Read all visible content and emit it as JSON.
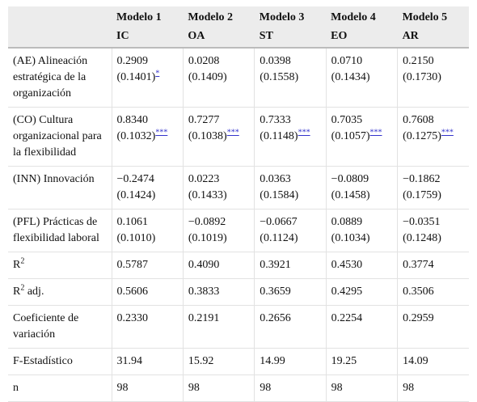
{
  "header": {
    "columns": [
      {
        "model": "Modelo 1",
        "code": "IC"
      },
      {
        "model": "Modelo 2",
        "code": "OA"
      },
      {
        "model": "Modelo 3",
        "code": "ST"
      },
      {
        "model": "Modelo 4",
        "code": "EO"
      },
      {
        "model": "Modelo 5",
        "code": "AR"
      }
    ]
  },
  "table": {
    "rows": [
      {
        "label": "(AE) Alineación estratégica de la organización",
        "cells": [
          {
            "value": "0.2909",
            "se": "(0.1401)",
            "sig": "*"
          },
          {
            "value": "0.0208",
            "se": "(0.1409)"
          },
          {
            "value": "0.0398",
            "se": "(0.1558)"
          },
          {
            "value": "0.0710",
            "se": "(0.1434)"
          },
          {
            "value": "0.2150",
            "se": "(0.1730)"
          }
        ]
      },
      {
        "label": "(CO) Cultura organizacional para la flexibilidad",
        "cells": [
          {
            "value": "0.8340",
            "se": "(0.1032)",
            "sig": "***"
          },
          {
            "value": "0.7277",
            "se": "(0.1038)",
            "sig": "***"
          },
          {
            "value": "0.7333",
            "se": "(0.1148)",
            "sig": "***"
          },
          {
            "value": "0.7035",
            "se": "(0.1057)",
            "sig": "***"
          },
          {
            "value": "0.7608",
            "se": "(0.1275)",
            "sig": "***"
          }
        ]
      },
      {
        "label": "(INN) Innovación",
        "cells": [
          {
            "value": "−0.2474",
            "se": "(0.1424)"
          },
          {
            "value": "0.0223",
            "se": "(0.1433)"
          },
          {
            "value": "0.0363",
            "se": "(0.1584)"
          },
          {
            "value": "−0.0809",
            "se": "(0.1458)"
          },
          {
            "value": "−0.1862",
            "se": "(0.1759)"
          }
        ]
      },
      {
        "label": "(PFL) Prácticas de flexibilidad laboral",
        "cells": [
          {
            "value": "0.1061",
            "se": "(0.1010)"
          },
          {
            "value": "−0.0892",
            "se": "(0.1019)"
          },
          {
            "value": "−0.0667",
            "se": "(0.1124)"
          },
          {
            "value": "0.0889",
            "se": "(0.1034)"
          },
          {
            "value": "−0.0351",
            "se": "(0.1248)"
          }
        ]
      },
      {
        "label": "R",
        "label_sup": "2",
        "cells": [
          {
            "value": "0.5787"
          },
          {
            "value": "0.4090"
          },
          {
            "value": "0.3921"
          },
          {
            "value": "0.4530"
          },
          {
            "value": "0.3774"
          }
        ]
      },
      {
        "label": "R",
        "label_sup": "2",
        "label_suffix": " adj.",
        "cells": [
          {
            "value": "0.5606"
          },
          {
            "value": "0.3833"
          },
          {
            "value": "0.3659"
          },
          {
            "value": "0.4295"
          },
          {
            "value": "0.3506"
          }
        ]
      },
      {
        "label": "Coeficiente de variación",
        "cells": [
          {
            "value": "0.2330"
          },
          {
            "value": "0.2191"
          },
          {
            "value": "0.2656"
          },
          {
            "value": "0.2254"
          },
          {
            "value": "0.2959"
          }
        ]
      },
      {
        "label": "F-Estadístico",
        "cells": [
          {
            "value": "31.94"
          },
          {
            "value": "15.92"
          },
          {
            "value": "14.99"
          },
          {
            "value": "19.25"
          },
          {
            "value": "14.09"
          }
        ]
      },
      {
        "label": "n",
        "cells": [
          {
            "value": "98"
          },
          {
            "value": "98"
          },
          {
            "value": "98"
          },
          {
            "value": "98"
          },
          {
            "value": "98"
          }
        ]
      }
    ]
  }
}
